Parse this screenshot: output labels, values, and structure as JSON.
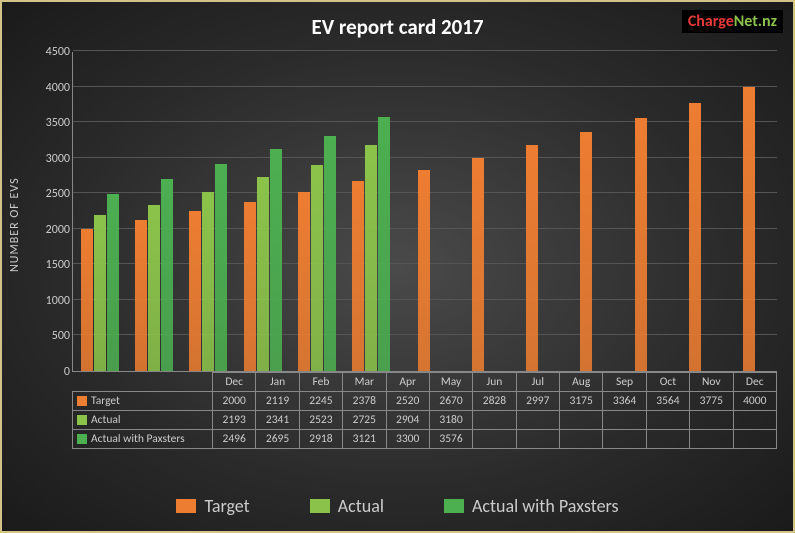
{
  "title": "EV report card 2017",
  "logo": {
    "part1": "Charge",
    "part2": "Net.nz"
  },
  "ylabel": "NUMBER OF EVS",
  "chart": {
    "type": "bar",
    "ymax": 4500,
    "ytick_step": 500,
    "categories": [
      "Dec",
      "Jan",
      "Feb",
      "Mar",
      "Apr",
      "May",
      "Jun",
      "Jul",
      "Aug",
      "Sep",
      "Oct",
      "Nov",
      "Dec"
    ],
    "series": [
      {
        "name": "Target",
        "color": "#ed7d31",
        "values": [
          2000,
          2119,
          2245,
          2378,
          2520,
          2670,
          2828,
          2997,
          3175,
          3364,
          3564,
          3775,
          4000
        ]
      },
      {
        "name": "Actual",
        "color": "#8bc34a",
        "values": [
          2193,
          2341,
          2523,
          2725,
          2904,
          3180,
          null,
          null,
          null,
          null,
          null,
          null,
          null
        ]
      },
      {
        "name": "Actual with Paxsters",
        "color": "#4caf50",
        "values": [
          2496,
          2695,
          2918,
          3121,
          3300,
          3576,
          null,
          null,
          null,
          null,
          null,
          null,
          null
        ]
      }
    ],
    "grid_color": "#555",
    "axis_color": "#888",
    "tick_color": "#cccccc",
    "tick_fontsize": 12,
    "background": "radial-gradient #4a4a4a -> #1a1a1a"
  },
  "legend_items": [
    "Target",
    "Actual",
    "Actual with Paxsters"
  ]
}
